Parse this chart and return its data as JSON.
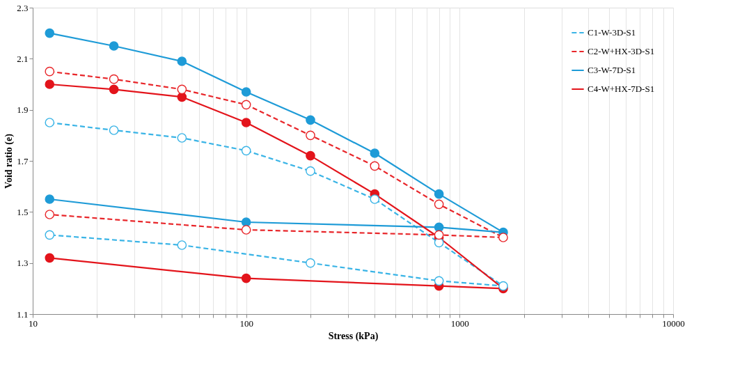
{
  "chart_data": {
    "type": "line",
    "xlabel": "Stress (kPa)",
    "ylabel": "Void ratio (e)",
    "log": "x",
    "xlim": [
      10,
      10000
    ],
    "ylim": [
      1.1,
      2.3
    ],
    "xticks": [
      10,
      {
        "value": 20,
        "label": null
      },
      {
        "value": 30,
        "label": null
      },
      {
        "value": 40,
        "label": null
      },
      {
        "value": 50,
        "label": null
      },
      {
        "value": 60,
        "label": null
      },
      {
        "value": 70,
        "label": null
      },
      {
        "value": 80,
        "label": null
      },
      {
        "value": 90,
        "label": null
      },
      100,
      {
        "value": 200,
        "label": null
      },
      {
        "value": 300,
        "label": null
      },
      {
        "value": 400,
        "label": null
      },
      {
        "value": 500,
        "label": null
      },
      {
        "value": 600,
        "label": null
      },
      {
        "value": 700,
        "label": null
      },
      {
        "value": 800,
        "label": null
      },
      {
        "value": 900,
        "label": null
      },
      1000,
      {
        "value": 2000,
        "label": null
      },
      {
        "value": 3000,
        "label": null
      },
      {
        "value": 4000,
        "label": null
      },
      {
        "value": 5000,
        "label": null
      },
      {
        "value": 6000,
        "label": null
      },
      {
        "value": 7000,
        "label": null
      },
      {
        "value": 8000,
        "label": null
      },
      {
        "value": 9000,
        "label": null
      },
      10000
    ],
    "yticks": [
      1.1,
      1.3,
      1.5,
      1.7,
      1.9,
      2.1,
      2.3
    ],
    "grid": "x",
    "legend": "top right",
    "marker": "circle",
    "series": [
      {
        "name": "C1-W-3D-S1",
        "color": "#3ab4e6",
        "line_style": "dashed",
        "x": [
          12,
          24,
          50,
          100,
          200,
          400,
          800,
          1600,
          800,
          200,
          50,
          12
        ],
        "values": [
          1.85,
          1.82,
          1.79,
          1.74,
          1.66,
          1.55,
          1.38,
          1.21,
          1.23,
          1.3,
          1.37,
          1.41
        ]
      },
      {
        "name": "C2-W+HX-3D-S1",
        "color": "#e8262a",
        "line_style": "dashed",
        "x": [
          12,
          24,
          50,
          100,
          200,
          400,
          800,
          1600,
          800,
          100,
          12
        ],
        "values": [
          2.05,
          2.02,
          1.98,
          1.92,
          1.8,
          1.68,
          1.53,
          1.4,
          1.41,
          1.43,
          1.49
        ]
      },
      {
        "name": "C3-W-7D-S1",
        "color": "#1e9bd7",
        "line_style": "solid",
        "x": [
          12,
          24,
          50,
          100,
          200,
          400,
          800,
          1600,
          800,
          100,
          12
        ],
        "values": [
          2.2,
          2.15,
          2.09,
          1.97,
          1.86,
          1.73,
          1.57,
          1.42,
          1.44,
          1.46,
          1.55
        ]
      },
      {
        "name": "C4-W+HX-7D-S1",
        "color": "#e3141b",
        "line_style": "solid",
        "x": [
          12,
          24,
          50,
          100,
          200,
          400,
          800,
          1600,
          800,
          100,
          12
        ],
        "values": [
          2.0,
          1.98,
          1.95,
          1.85,
          1.72,
          1.57,
          1.4,
          1.2,
          1.21,
          1.24,
          1.32
        ]
      }
    ]
  }
}
